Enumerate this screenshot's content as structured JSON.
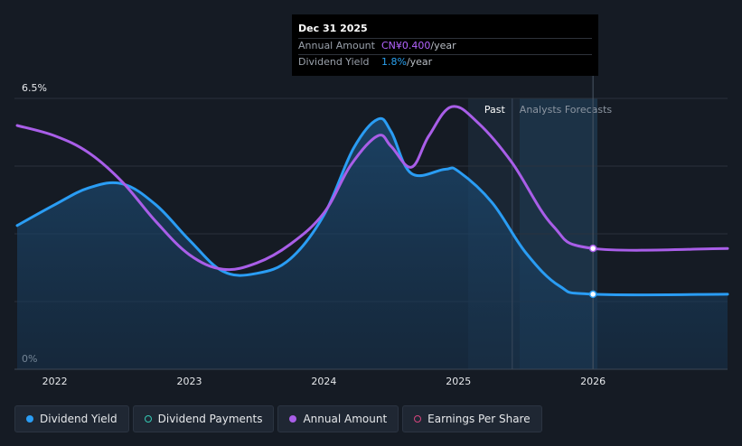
{
  "chart_data": {
    "type": "line",
    "y_axis": {
      "min": 0,
      "max": 6.5,
      "unit": "%",
      "tick_labels": [
        "6.5%",
        "0%"
      ]
    },
    "x_axis": {
      "tick_labels": [
        "2022",
        "2023",
        "2024",
        "2025",
        "2026"
      ],
      "range": [
        2021.7,
        2027.0
      ]
    },
    "sections": {
      "past_label": "Past",
      "forecast_label": "Analysts Forecasts",
      "forecast_start": 2025.4
    },
    "series": [
      {
        "name": "Dividend Yield",
        "color": "#2a9df4",
        "points": [
          [
            2021.72,
            3.45
          ],
          [
            2022.0,
            3.95
          ],
          [
            2022.25,
            4.35
          ],
          [
            2022.5,
            4.45
          ],
          [
            2022.75,
            3.95
          ],
          [
            2023.0,
            3.1
          ],
          [
            2023.25,
            2.35
          ],
          [
            2023.5,
            2.3
          ],
          [
            2023.75,
            2.65
          ],
          [
            2024.0,
            3.7
          ],
          [
            2024.22,
            5.3
          ],
          [
            2024.4,
            6.0
          ],
          [
            2024.5,
            5.7
          ],
          [
            2024.65,
            4.7
          ],
          [
            2024.9,
            4.8
          ],
          [
            2025.0,
            4.75
          ],
          [
            2025.25,
            4.0
          ],
          [
            2025.5,
            2.8
          ],
          [
            2025.75,
            2.0
          ],
          [
            2026.0,
            1.8
          ],
          [
            2027.0,
            1.8
          ]
        ]
      },
      {
        "name": "Annual Amount",
        "color": "#a95ee8",
        "points": [
          [
            2021.72,
            5.85
          ],
          [
            2022.0,
            5.6
          ],
          [
            2022.25,
            5.2
          ],
          [
            2022.5,
            4.5
          ],
          [
            2022.75,
            3.55
          ],
          [
            2023.0,
            2.75
          ],
          [
            2023.25,
            2.4
          ],
          [
            2023.5,
            2.55
          ],
          [
            2023.75,
            3.0
          ],
          [
            2024.0,
            3.75
          ],
          [
            2024.2,
            4.9
          ],
          [
            2024.4,
            5.6
          ],
          [
            2024.5,
            5.35
          ],
          [
            2024.65,
            4.85
          ],
          [
            2024.78,
            5.6
          ],
          [
            2024.95,
            6.3
          ],
          [
            2025.15,
            5.9
          ],
          [
            2025.4,
            4.95
          ],
          [
            2025.7,
            3.45
          ],
          [
            2026.0,
            2.9
          ],
          [
            2027.0,
            2.9
          ]
        ]
      }
    ],
    "tooltip": {
      "date": "Dec 31 2025",
      "rows": [
        {
          "label": "Annual Amount",
          "value": "CN¥0.400",
          "unit": "/year"
        },
        {
          "label": "Dividend Yield",
          "value": "1.8%",
          "unit": "/year"
        }
      ]
    },
    "highlight_x": 2026.0,
    "grid": true
  },
  "legend": [
    {
      "label": "Dividend Yield",
      "color": "#2a9df4",
      "filled": true
    },
    {
      "label": "Dividend Payments",
      "color": "#35c9b5",
      "filled": false
    },
    {
      "label": "Annual Amount",
      "color": "#a95ee8",
      "filled": true
    },
    {
      "label": "Earnings Per Share",
      "color": "#d6457e",
      "filled": false
    }
  ]
}
